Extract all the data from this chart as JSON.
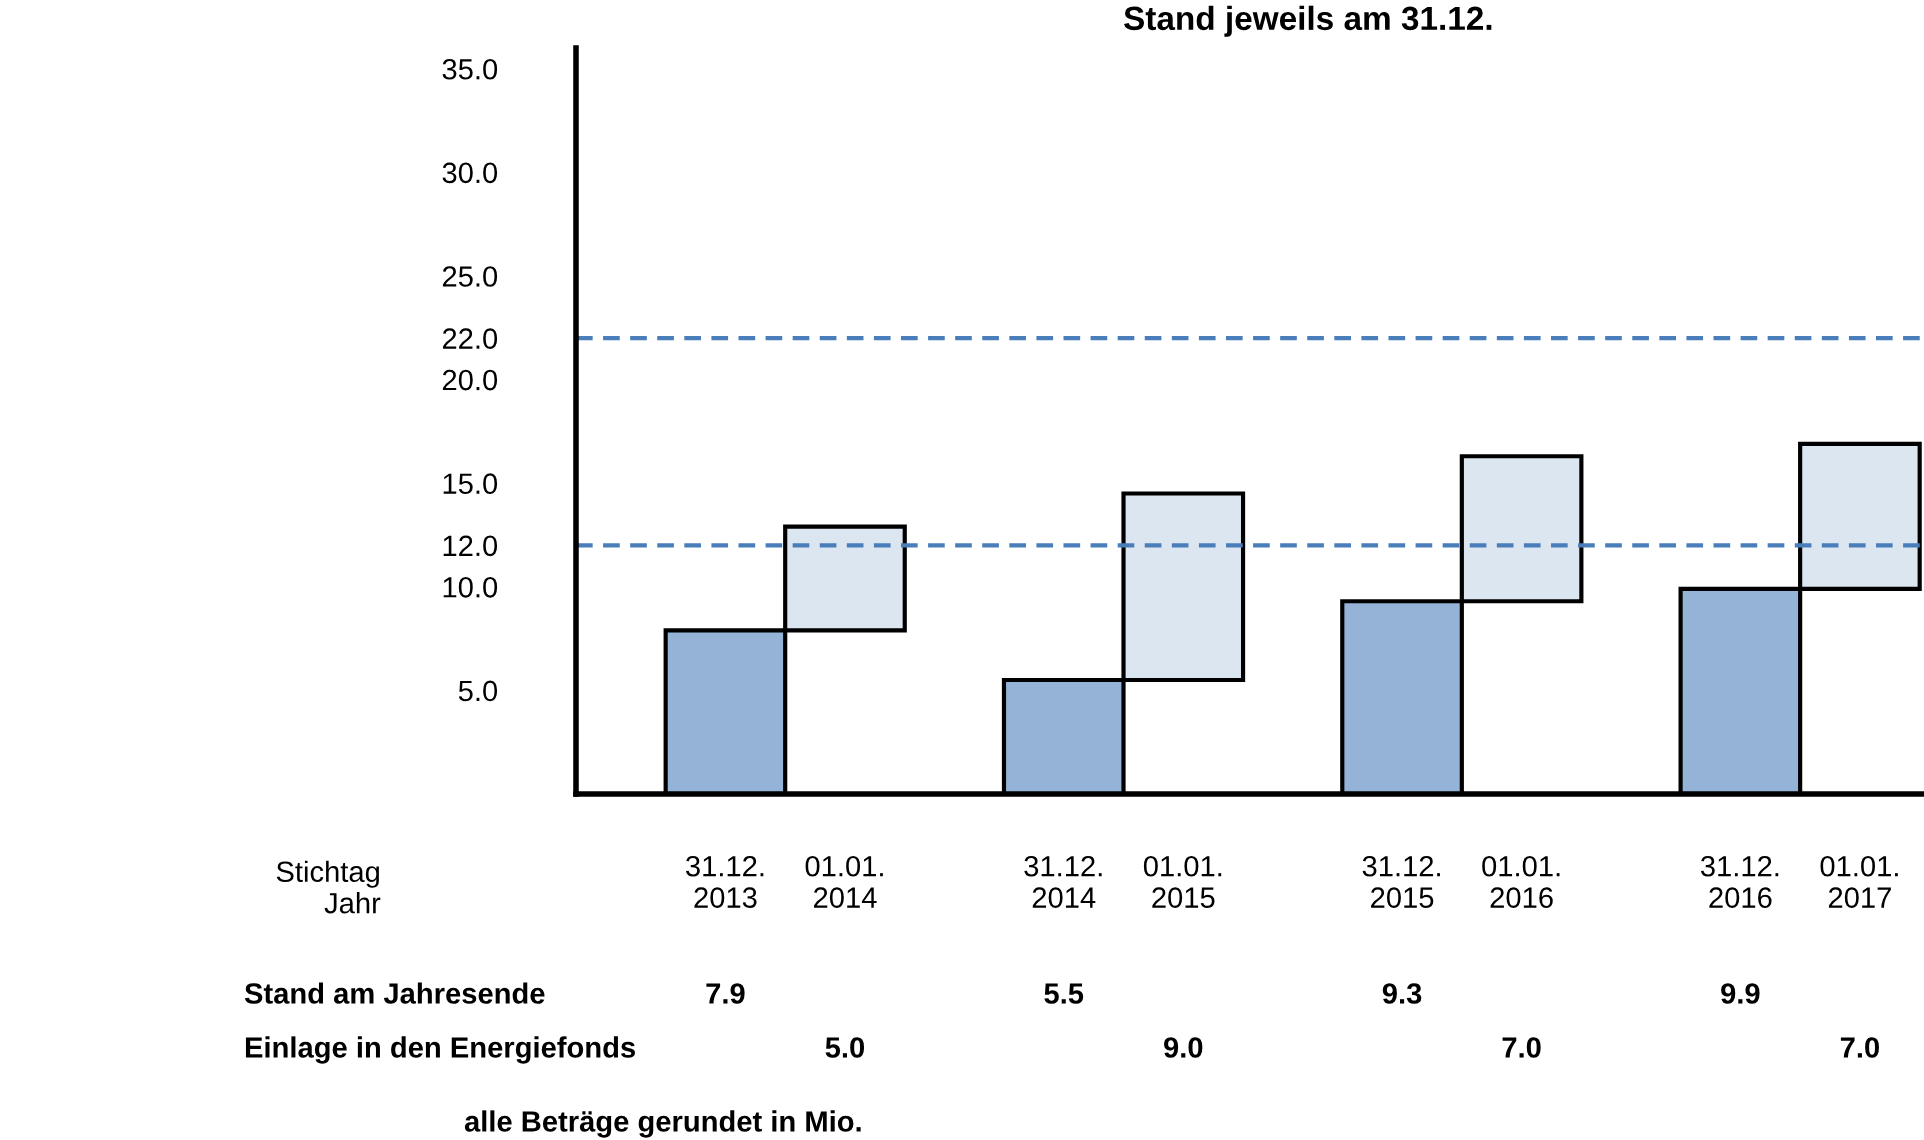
{
  "chart_data": {
    "type": "bar",
    "title": "Stand jeweils am 31.12.",
    "xlabel": "Stichtag\nJahr",
    "categories": [
      "31.12.\n2013",
      "01.01.\n2014",
      "31.12.\n2014",
      "01.01.\n2015",
      "31.12.\n2015",
      "01.01.\n2016",
      "31.12.\n2016",
      "01.01.\n2017"
    ],
    "series": [
      {
        "color": "#95b3d7",
        "values": [
          7.9,
          null,
          5.5,
          null,
          9.3,
          null,
          9.9,
          null
        ],
        "value_labels": [
          "7.9",
          null,
          "5.5",
          null,
          "9.3",
          null,
          "9.9",
          null
        ],
        "base": [
          0,
          null,
          0,
          null,
          0,
          null,
          0,
          null
        ]
      },
      {
        "color": "#dce6f1",
        "values": [
          null,
          5.0,
          null,
          9.0,
          null,
          7.0,
          null,
          7.0
        ],
        "value_labels": [
          null,
          "5.0",
          null,
          "9.0",
          null,
          "7.0",
          null,
          "7.0"
        ],
        "base": [
          null,
          7.9,
          null,
          5.5,
          null,
          9.3,
          null,
          9.9
        ]
      }
    ],
    "ylim": [
      0,
      36
    ],
    "yticks": [
      {
        "value": 5,
        "label": "5.0"
      },
      {
        "value": 10,
        "label": "10.0"
      },
      {
        "value": 12,
        "label": "12.0"
      },
      {
        "value": 15,
        "label": "15.0"
      },
      {
        "value": 20,
        "label": "20.0"
      },
      {
        "value": 22,
        "label": "22.0"
      },
      {
        "value": 25,
        "label": "25.0"
      },
      {
        "value": 30,
        "label": "30.0"
      },
      {
        "value": 35,
        "label": "35.0"
      }
    ],
    "ref_lines": [
      {
        "axis": "y",
        "value": 22,
        "color": "#4a7ebb",
        "line_style": "dashed"
      },
      {
        "axis": "y",
        "value": 12,
        "color": "#4a7ebb",
        "line_style": "dashed"
      }
    ],
    "grid": false,
    "legend": false,
    "annotations": [
      "Stand am Jahresende",
      "Einlage in den Energiefonds",
      "alle Beträge gerundet in Mio."
    ]
  }
}
